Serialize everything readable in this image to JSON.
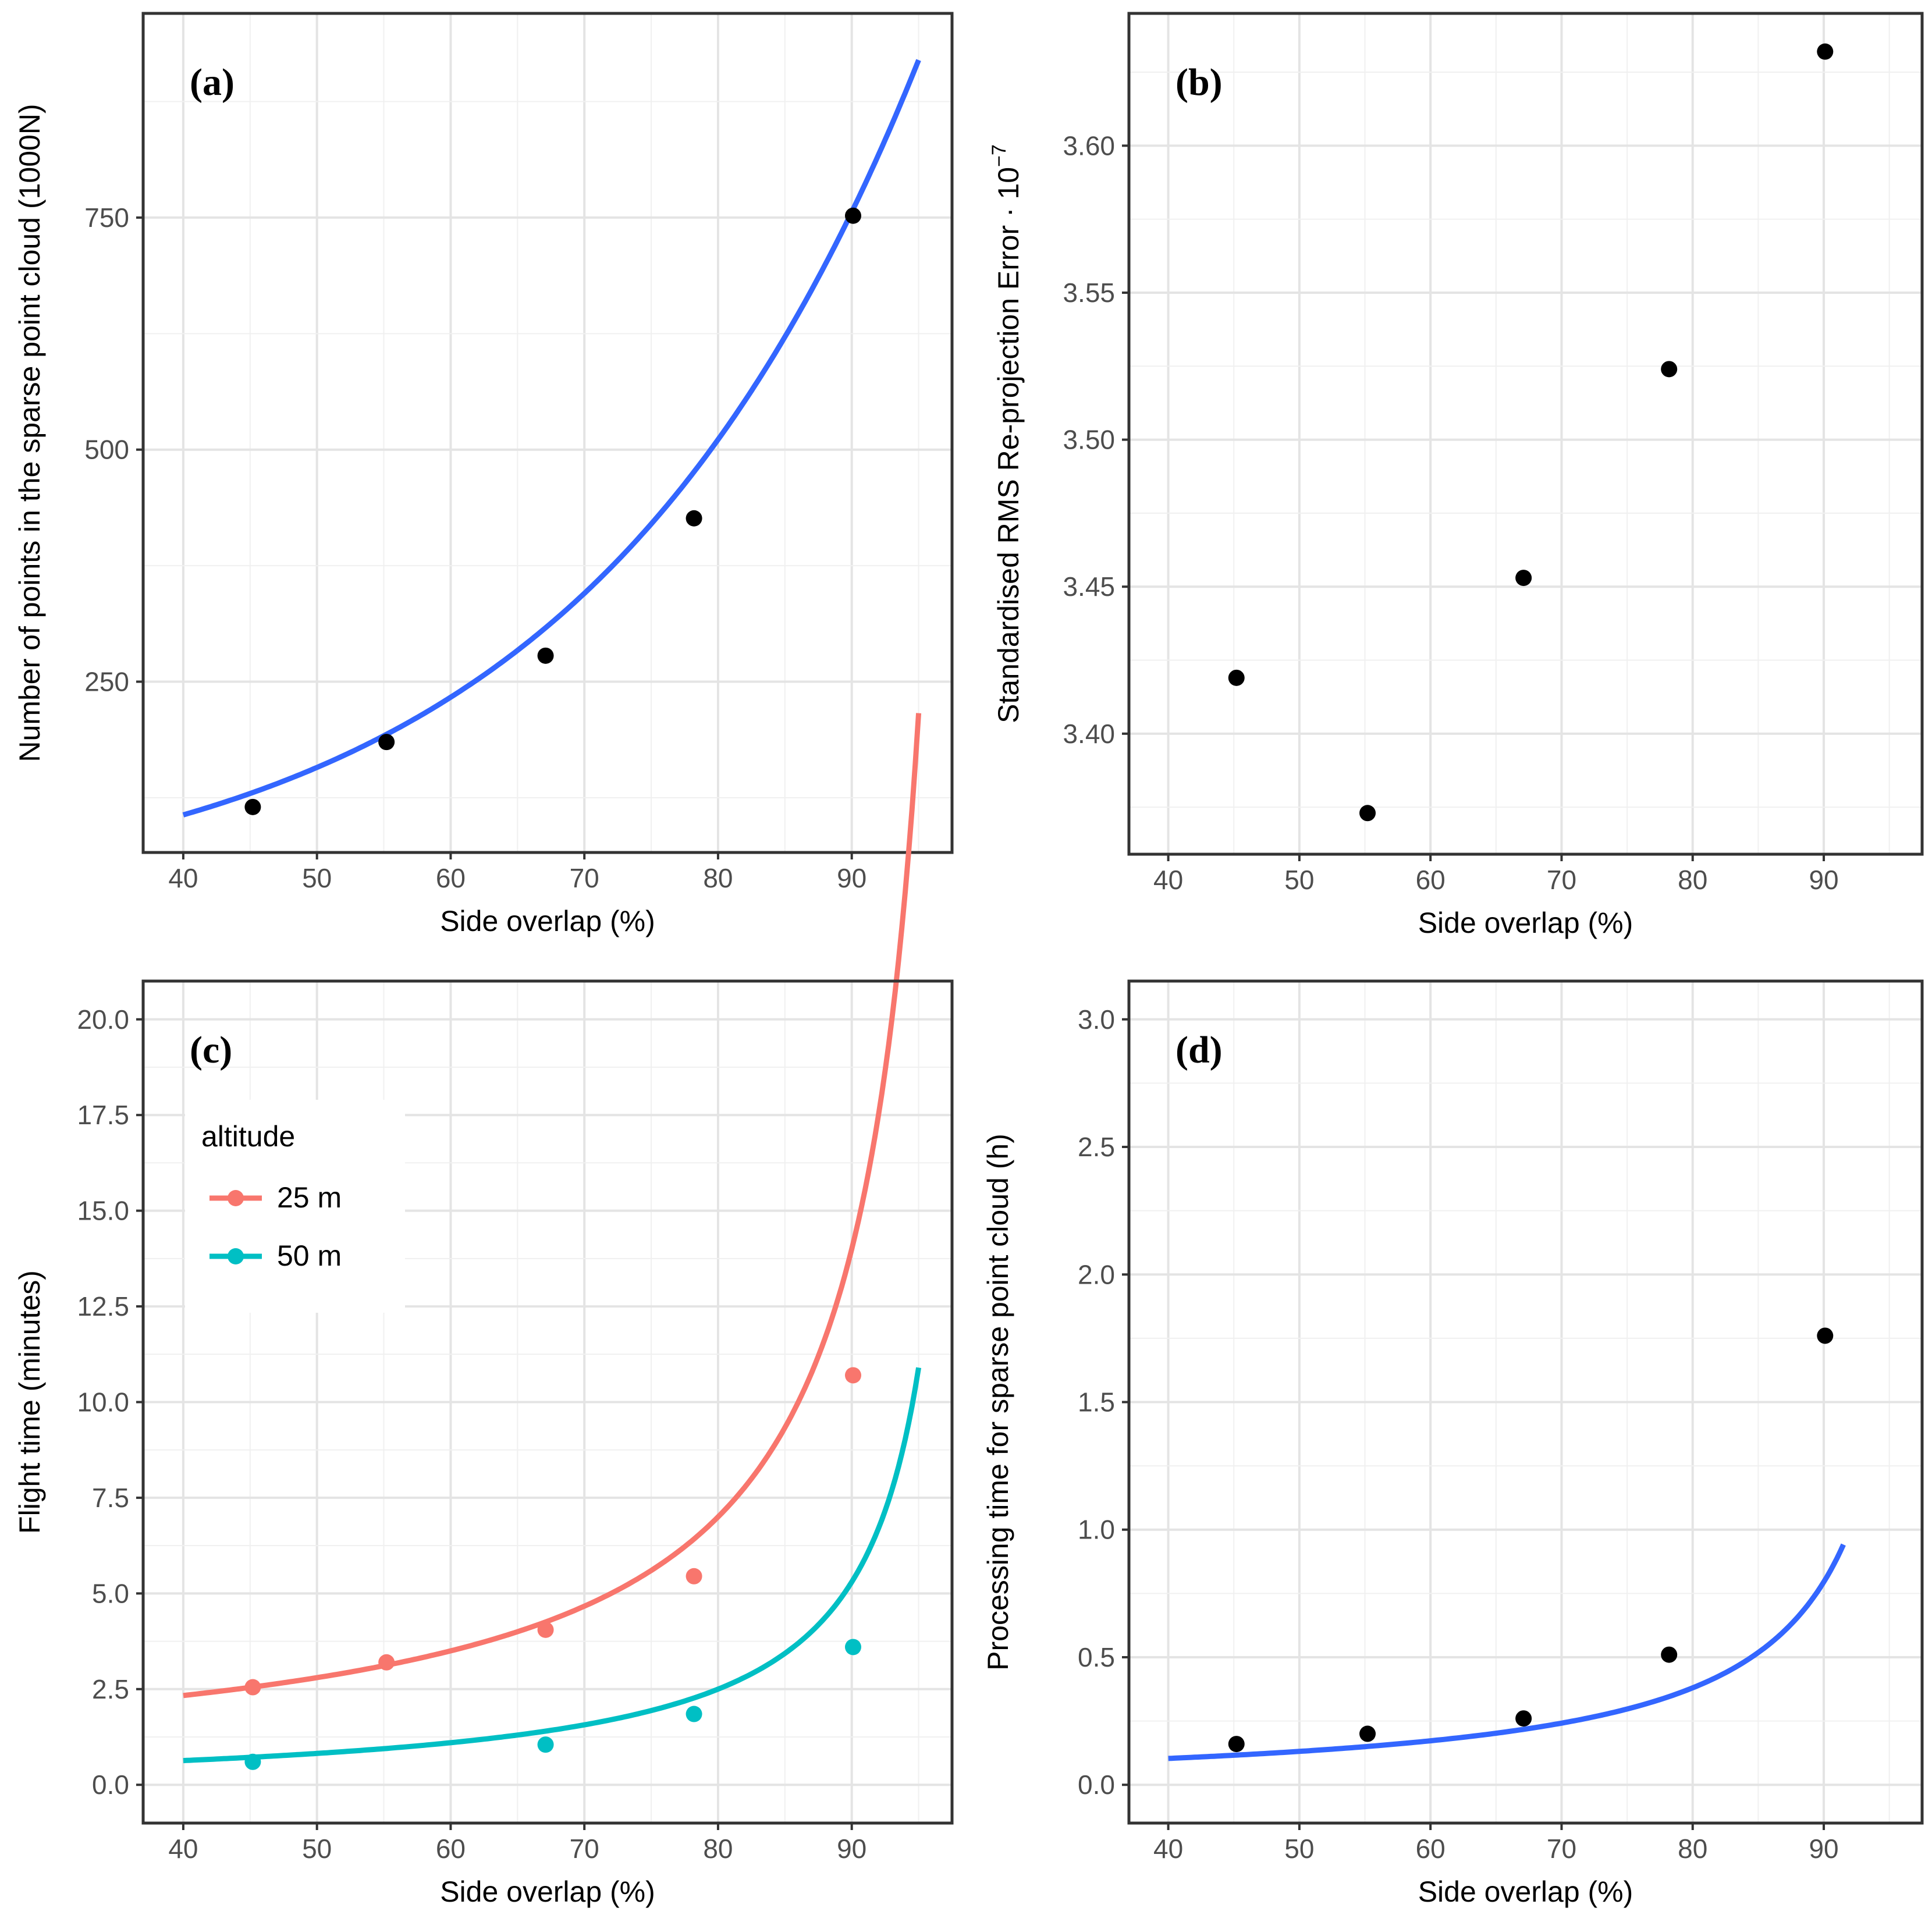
{
  "chart_data": [
    {
      "id": "a",
      "type": "scatter",
      "panel_label": "(a)",
      "xlabel": "Side overlap (%)",
      "ylabel": "Number of points in the sparse point cloud (1000N)",
      "xlim": [
        37,
        97.5
      ],
      "ylim": [
        66,
        970
      ],
      "xticks": [
        40,
        50,
        60,
        70,
        80,
        90
      ],
      "yticks": [
        250,
        500,
        750
      ],
      "grid": true,
      "points": [
        {
          "x": 45.2,
          "y": 115
        },
        {
          "x": 55.2,
          "y": 185
        },
        {
          "x": 67.1,
          "y": 278
        },
        {
          "x": 78.2,
          "y": 426
        },
        {
          "x": 90.1,
          "y": 752
        }
      ],
      "point_color": "#000000",
      "fit": {
        "model": "exponential",
        "a": 22.2,
        "b": 0.0392,
        "x_range": [
          40,
          95
        ],
        "color": "#3366ff"
      }
    },
    {
      "id": "b",
      "type": "scatter",
      "panel_label": "(b)",
      "xlabel": "Side overlap (%)",
      "ylabel": "Standardised RMS Re-projection Error · 10",
      "ylabel_superscript": "−7",
      "xlim": [
        37,
        97.5
      ],
      "ylim": [
        3.359,
        3.645
      ],
      "xticks": [
        40,
        50,
        60,
        70,
        80,
        90
      ],
      "yticks": [
        3.4,
        3.45,
        3.5,
        3.55,
        3.6
      ],
      "ytick_labels": [
        "3.40",
        "3.45",
        "3.50",
        "3.55",
        "3.60"
      ],
      "grid": true,
      "points": [
        {
          "x": 45.2,
          "y": 3.419
        },
        {
          "x": 55.2,
          "y": 3.373
        },
        {
          "x": 67.1,
          "y": 3.453
        },
        {
          "x": 78.2,
          "y": 3.524
        },
        {
          "x": 90.1,
          "y": 3.632
        }
      ],
      "point_color": "#000000"
    },
    {
      "id": "c",
      "type": "scatter",
      "panel_label": "(c)",
      "xlabel": "Side overlap (%)",
      "ylabel": "Flight time (minutes)",
      "xlim": [
        37,
        97.5
      ],
      "ylim": [
        -1.0,
        21.0
      ],
      "xticks": [
        40,
        50,
        60,
        70,
        80,
        90
      ],
      "yticks": [
        0.0,
        2.5,
        5.0,
        7.5,
        10.0,
        12.5,
        15.0,
        17.5,
        20.0
      ],
      "ytick_labels": [
        "0.0",
        "2.5",
        "5.0",
        "7.5",
        "10.0",
        "12.5",
        "15.0",
        "17.5",
        "20.0"
      ],
      "grid": true,
      "legend": {
        "title": "altitude",
        "placement": "top-left"
      },
      "series": [
        {
          "name": "25 m",
          "color": "#f8766d",
          "points": [
            {
              "x": 45.2,
              "y": 2.55
            },
            {
              "x": 55.2,
              "y": 3.2
            },
            {
              "x": 67.1,
              "y": 4.05
            },
            {
              "x": 78.2,
              "y": 5.45
            },
            {
              "x": 90.1,
              "y": 10.7
            }
          ],
          "fit": {
            "model": "inverse",
            "c": 0.0,
            "k": 140.0,
            "x_range": [
              40,
              95
            ]
          }
        },
        {
          "name": "50 m",
          "color": "#00bfc4",
          "points": [
            {
              "x": 45.2,
              "y": 0.6
            },
            {
              "x": 67.1,
              "y": 1.05
            },
            {
              "x": 78.2,
              "y": 1.85
            },
            {
              "x": 90.1,
              "y": 3.6
            }
          ],
          "fit": {
            "model": "inverse",
            "c": -0.3,
            "k": 56.0,
            "x_range": [
              40,
              95
            ]
          }
        }
      ]
    },
    {
      "id": "d",
      "type": "scatter",
      "panel_label": "(d)",
      "xlabel": "Side overlap (%)",
      "ylabel": "Processing time for sparse point cloud (h)",
      "xlim": [
        37,
        97.5
      ],
      "ylim": [
        -0.15,
        3.15
      ],
      "xticks": [
        40,
        50,
        60,
        70,
        80,
        90
      ],
      "yticks": [
        0.0,
        0.5,
        1.0,
        1.5,
        2.0,
        2.5,
        3.0
      ],
      "ytick_labels": [
        "0.0",
        "0.5",
        "1.0",
        "1.5",
        "2.0",
        "2.5",
        "3.0"
      ],
      "grid": true,
      "points": [
        {
          "x": 45.2,
          "y": 0.16
        },
        {
          "x": 55.2,
          "y": 0.2
        },
        {
          "x": 67.1,
          "y": 0.26
        },
        {
          "x": 78.2,
          "y": 0.51
        },
        {
          "x": 90.1,
          "y": 1.76
        }
      ],
      "point_color": "#000000",
      "fit": {
        "model": "inverse",
        "c": -0.035,
        "k": 8.3,
        "x_range": [
          40,
          91.5
        ],
        "color": "#3366ff"
      }
    }
  ]
}
